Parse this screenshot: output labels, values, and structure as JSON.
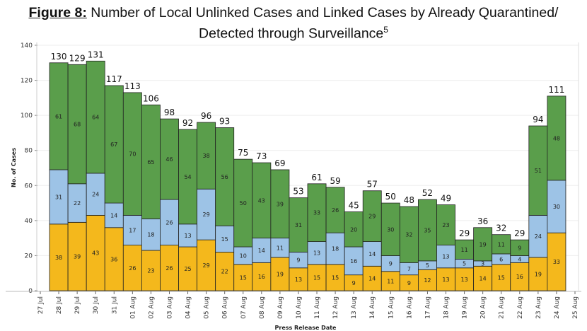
{
  "chart_data": {
    "type": "bar",
    "stacked": true,
    "title_label": "Figure 8:",
    "title": "Number of Local Unlinked Cases and Linked Cases by Already Quarantined/ Detected through Surveillance",
    "title_footnote": "5",
    "xlabel": "Press Release Date",
    "ylabel": "No. of Cases",
    "ylim": [
      0,
      140
    ],
    "yticks": [
      0,
      20,
      40,
      60,
      80,
      100,
      120,
      140
    ],
    "grid": true,
    "x_ticks": [
      "27 Jul",
      "28 Jul",
      "29 Jul",
      "30 Jul",
      "31 Jul",
      "01 Aug",
      "02 Aug",
      "03 Aug",
      "04 Aug",
      "05 Aug",
      "06 Aug",
      "07 Aug",
      "08 Aug",
      "09 Aug",
      "10 Aug",
      "11 Aug",
      "12 Aug",
      "13 Aug",
      "14 Aug",
      "15 Aug",
      "16 Aug",
      "17 Aug",
      "18 Aug",
      "19 Aug",
      "20 Aug",
      "21 Aug",
      "22 Aug",
      "23 Aug",
      "24 Aug",
      "25 Aug"
    ],
    "categories": [
      "28 Jul",
      "29 Jul",
      "30 Jul",
      "31 Jul",
      "01 Aug",
      "02 Aug",
      "03 Aug",
      "04 Aug",
      "05 Aug",
      "06 Aug",
      "07 Aug",
      "08 Aug",
      "09 Aug",
      "10 Aug",
      "11 Aug",
      "12 Aug",
      "13 Aug",
      "14 Aug",
      "15 Aug",
      "16 Aug",
      "17 Aug",
      "18 Aug",
      "19 Aug",
      "20 Aug",
      "21 Aug",
      "22 Aug",
      "23 Aug",
      "24 Aug"
    ],
    "series": [
      {
        "color": "#F4B81C",
        "values": [
          38,
          39,
          43,
          36,
          26,
          23,
          26,
          25,
          29,
          22,
          15,
          16,
          19,
          13,
          15,
          15,
          9,
          14,
          11,
          9,
          12,
          13,
          13,
          14,
          15,
          16,
          19,
          33
        ]
      },
      {
        "color": "#9DC3E6",
        "values": [
          31,
          22,
          24,
          14,
          17,
          18,
          26,
          13,
          29,
          15,
          10,
          14,
          11,
          9,
          13,
          18,
          16,
          14,
          9,
          7,
          5,
          13,
          5,
          3,
          6,
          4,
          24,
          30
        ]
      },
      {
        "color": "#5A9E4B",
        "values": [
          61,
          68,
          64,
          67,
          70,
          65,
          46,
          54,
          38,
          56,
          50,
          43,
          39,
          31,
          33,
          26,
          20,
          29,
          30,
          32,
          35,
          23,
          11,
          19,
          11,
          9,
          51,
          48
        ]
      }
    ],
    "totals": [
      130,
      129,
      131,
      117,
      113,
      106,
      98,
      92,
      96,
      93,
      75,
      73,
      69,
      53,
      61,
      59,
      45,
      57,
      50,
      48,
      52,
      49,
      29,
      36,
      32,
      29,
      94,
      111
    ]
  }
}
